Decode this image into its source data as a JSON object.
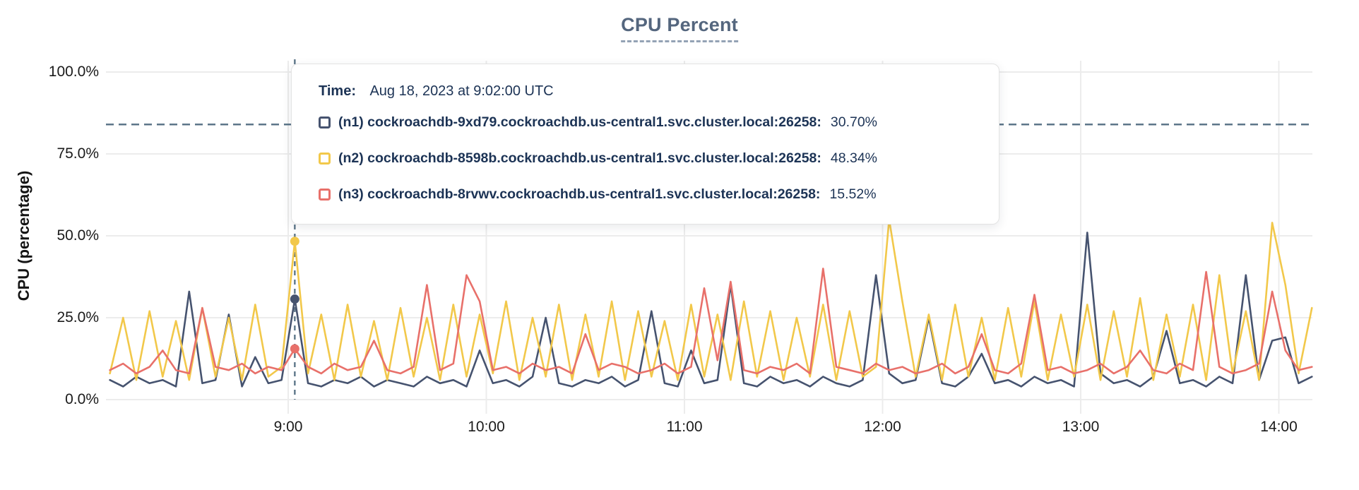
{
  "tooltip": {
    "time_label": "Time:",
    "time_value": "Aug 18, 2023 at 9:02:00 UTC",
    "rows": [
      {
        "name": "(n1) cockroachdb-9xd79.cockroachdb.us-central1.svc.cluster.local:26258:",
        "value": "30.70%",
        "color": "#46536f"
      },
      {
        "name": "(n2) cockroachdb-8598b.cockroachdb.us-central1.svc.cluster.local:26258:",
        "value": "48.34%",
        "color": "#f2c84a"
      },
      {
        "name": "(n3) cockroachdb-8rvwv.cockroachdb.us-central1.svc.cluster.local:26258:",
        "value": "15.52%",
        "color": "#e8706a"
      }
    ]
  },
  "chart_data": {
    "type": "line",
    "title": "CPU Percent",
    "ylabel": "CPU (percentage)",
    "xlabel": "",
    "ylim": [
      0,
      100
    ],
    "y_ticks": [
      "100.0%",
      "75.0%",
      "50.0%",
      "25.0%",
      "0.0%"
    ],
    "y_tick_values": [
      100,
      75,
      50,
      25,
      0
    ],
    "x_ticks": [
      "9:00",
      "10:00",
      "11:00",
      "12:00",
      "13:00",
      "14:00"
    ],
    "x_tick_minutes": [
      540,
      600,
      660,
      720,
      780,
      840
    ],
    "time_start_minutes": 486,
    "time_step_minutes": 4,
    "threshold_percent": 84,
    "crosshair_minutes": 542,
    "grid": true,
    "legend_position": "tooltip-overlay",
    "colors": {
      "grid": "#ececec",
      "dashed_guides": "#5d7689",
      "title": "#54667e",
      "tooltip_text": "#1c3355"
    },
    "series": [
      {
        "name": "n1",
        "label": "cockroachdb-9xd79.cockroachdb.us-central1.svc.cluster.local:26258",
        "color": "#46536f",
        "marker_value": 30.7,
        "values": [
          6,
          4,
          7,
          5,
          6,
          4,
          33,
          5,
          6,
          26,
          4,
          13,
          5,
          6,
          30.7,
          5,
          4,
          6,
          5,
          7,
          4,
          6,
          5,
          4,
          7,
          5,
          6,
          4,
          15,
          5,
          6,
          4,
          7,
          25,
          5,
          4,
          6,
          5,
          7,
          4,
          6,
          27,
          5,
          4,
          15,
          5,
          6,
          35,
          5,
          4,
          7,
          5,
          6,
          4,
          7,
          5,
          4,
          6,
          38,
          8,
          5,
          6,
          25,
          5,
          4,
          7,
          14,
          5,
          6,
          4,
          7,
          5,
          6,
          4,
          51,
          8,
          5,
          6,
          4,
          7,
          21,
          5,
          6,
          4,
          7,
          5,
          38,
          6,
          18,
          19,
          5,
          7
        ]
      },
      {
        "name": "n2",
        "label": "cockroachdb-8598b.cockroachdb.us-central1.svc.cluster.local:26258",
        "color": "#f2c84a",
        "marker_value": 48.34,
        "values": [
          8,
          25,
          6,
          27,
          7,
          24,
          6,
          28,
          7,
          25,
          6,
          29,
          7,
          10,
          48.3,
          8,
          26,
          6,
          29,
          7,
          24,
          6,
          28,
          7,
          25,
          6,
          29,
          7,
          26,
          8,
          30,
          6,
          25,
          7,
          29,
          6,
          26,
          7,
          30,
          6,
          27,
          7,
          24,
          6,
          29,
          7,
          26,
          6,
          30,
          7,
          27,
          6,
          25,
          7,
          29,
          6,
          27,
          7,
          10,
          55,
          30,
          7,
          26,
          6,
          29,
          7,
          25,
          6,
          28,
          7,
          30,
          6,
          26,
          7,
          29,
          6,
          27,
          7,
          31,
          6,
          26,
          7,
          29,
          6,
          38,
          8,
          27,
          6,
          54,
          35,
          8,
          28
        ]
      },
      {
        "name": "n3",
        "label": "cockroachdb-8rvwv.cockroachdb.us-central1.svc.cluster.local:26258",
        "color": "#e8706a",
        "marker_value": 15.52,
        "values": [
          9,
          11,
          8,
          10,
          15,
          9,
          8,
          28,
          10,
          9,
          11,
          8,
          10,
          9,
          15.5,
          10,
          8,
          11,
          9,
          10,
          18,
          9,
          8,
          10,
          35,
          9,
          11,
          38,
          30,
          9,
          10,
          8,
          11,
          9,
          10,
          8,
          20,
          9,
          11,
          10,
          8,
          9,
          11,
          8,
          10,
          34,
          12,
          36,
          9,
          8,
          10,
          9,
          11,
          8,
          40,
          10,
          9,
          8,
          11,
          9,
          10,
          8,
          9,
          11,
          8,
          10,
          20,
          9,
          8,
          11,
          32,
          9,
          10,
          8,
          9,
          11,
          8,
          10,
          15,
          9,
          8,
          11,
          9,
          39,
          10,
          8,
          9,
          11,
          33,
          15,
          9,
          10
        ]
      }
    ]
  }
}
